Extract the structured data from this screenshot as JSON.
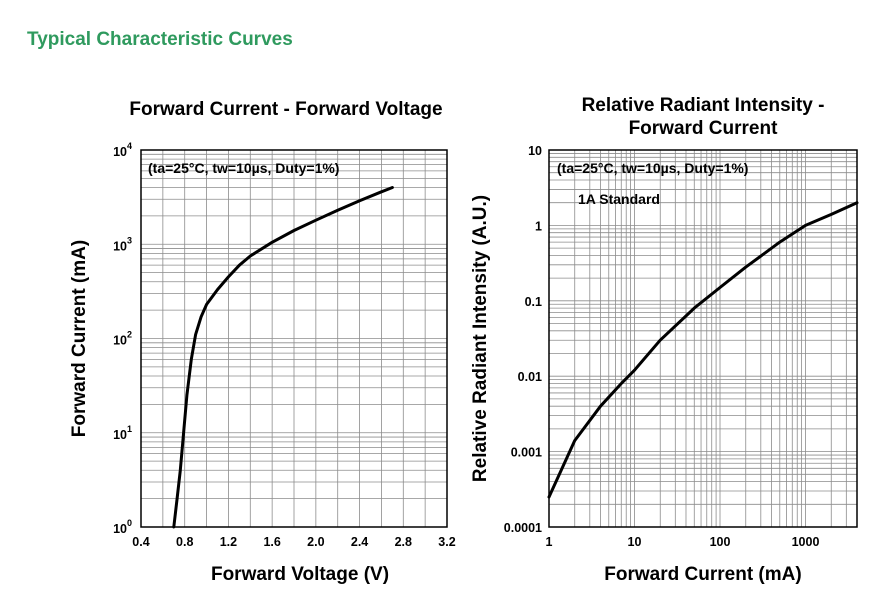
{
  "page": {
    "heading": "Typical Characteristic Curves"
  },
  "colors": {
    "heading": "#2f9a5e",
    "grid": "#8c8c8c",
    "curve": "#000000",
    "frame": "#000000"
  },
  "chart_data": [
    {
      "type": "line",
      "title": "Forward Current - Forward Voltage",
      "xlabel": "Forward Voltage (V)",
      "ylabel": "Forward Current (mA)",
      "xlim": [
        0.4,
        3.2
      ],
      "ylim": [
        1,
        10000
      ],
      "yscale": "log",
      "grid": true,
      "x_ticks": [
        "0.4",
        "0.8",
        "1.2",
        "1.6",
        "2.0",
        "2.4",
        "2.8",
        "3.2"
      ],
      "y_ticks": [
        {
          "base": "10",
          "exp": "0"
        },
        {
          "base": "10",
          "exp": "1"
        },
        {
          "base": "10",
          "exp": "2"
        },
        {
          "base": "10",
          "exp": "3"
        },
        {
          "base": "10",
          "exp": "4"
        }
      ],
      "annotations": [
        "(ta=25°C, tw=10µs, Duty=1%)"
      ],
      "series": [
        {
          "x": [
            0.7,
            0.73,
            0.76,
            0.79,
            0.82,
            0.86,
            0.9,
            0.95,
            1.0,
            1.1,
            1.2,
            1.3,
            1.4,
            1.6,
            1.8,
            2.0,
            2.2,
            2.4,
            2.6,
            2.7
          ],
          "y": [
            1,
            2,
            4,
            10,
            25,
            60,
            110,
            170,
            230,
            330,
            450,
            600,
            750,
            1050,
            1400,
            1800,
            2300,
            2900,
            3600,
            4000
          ]
        }
      ]
    },
    {
      "type": "line",
      "title": "Relative Radiant Intensity - Forward Current",
      "title_lines": [
        "Relative Radiant Intensity -",
        "Forward Current"
      ],
      "xlabel": "Forward Current (mA)",
      "ylabel": "Relative Radiant Intensity (A.U.)",
      "xscale": "log",
      "yscale": "log",
      "xlim": [
        1,
        4000
      ],
      "ylim": [
        0.0001,
        10
      ],
      "grid": true,
      "x_ticks": [
        "1",
        "10",
        "100",
        "1000"
      ],
      "y_ticks": [
        "0.0001",
        "0.001",
        "0.01",
        "0.1",
        "1",
        "10"
      ],
      "annotations": [
        "(ta=25°C, tw=10µs, Duty=1%)",
        "1A Standard"
      ],
      "series": [
        {
          "x": [
            1,
            2,
            4,
            7,
            10,
            20,
            50,
            100,
            200,
            500,
            1000,
            2000,
            4000
          ],
          "y": [
            0.00025,
            0.0014,
            0.004,
            0.008,
            0.012,
            0.03,
            0.08,
            0.15,
            0.28,
            0.6,
            1.0,
            1.4,
            2.0
          ]
        }
      ]
    }
  ]
}
